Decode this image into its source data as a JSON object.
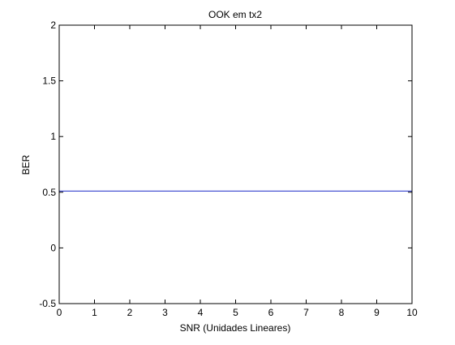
{
  "chart_data": {
    "type": "line",
    "title": "OOK em tx2",
    "xlabel": "SNR (Unidades Lineares)",
    "ylabel": "BER",
    "xlim": [
      0,
      10
    ],
    "ylim": [
      -0.5,
      2
    ],
    "xticks": [
      0,
      1,
      2,
      3,
      4,
      5,
      6,
      7,
      8,
      9,
      10
    ],
    "xtick_labels": [
      "0",
      "1",
      "2",
      "3",
      "4",
      "5",
      "6",
      "7",
      "8",
      "9",
      "10"
    ],
    "yticks": [
      -0.5,
      0,
      0.5,
      1,
      1.5,
      2
    ],
    "ytick_labels": [
      "-0.5",
      "0",
      "0.5",
      "1",
      "1.5",
      "2"
    ],
    "grid": false,
    "series": [
      {
        "x": [
          0,
          1,
          2,
          3,
          4,
          5,
          6,
          7,
          8,
          9,
          10
        ],
        "y": [
          0.51,
          0.51,
          0.51,
          0.51,
          0.51,
          0.51,
          0.51,
          0.51,
          0.51,
          0.51,
          0.51
        ]
      }
    ],
    "colors": {
      "series": "#1f2ec8",
      "axes": "#000000",
      "background": "#ffffff"
    }
  }
}
